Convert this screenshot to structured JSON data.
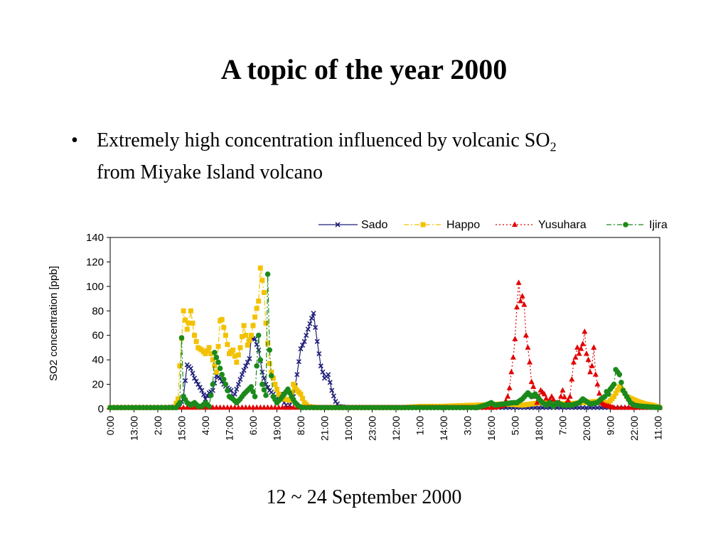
{
  "slide": {
    "title": "A topic of the year 2000",
    "bullet_symbol": "•",
    "bullet_text_pre": "Extremely high concentration influenced by volcanic SO",
    "bullet_subscript": "2",
    "bullet_text_line2": "from Miyake Island volcano",
    "caption": "12 ~ 24 September 2000"
  },
  "chart_data": {
    "type": "line",
    "title": "",
    "xlabel": "",
    "ylabel": "SO2 concentration [ppb]",
    "ylim": [
      0,
      140
    ],
    "yticks": [
      0,
      20,
      40,
      60,
      80,
      100,
      120,
      140
    ],
    "grid": false,
    "legend": "top-right",
    "x_tick_labels": [
      "0:00",
      "13:00",
      "2:00",
      "15:00",
      "4:00",
      "17:00",
      "6:00",
      "19:00",
      "8:00",
      "21:00",
      "10:00",
      "23:00",
      "12:00",
      "1:00",
      "14:00",
      "3:00",
      "16:00",
      "5:00",
      "18:00",
      "7:00",
      "20:00",
      "9:00",
      "22:00",
      "11:00"
    ],
    "x_tick_hours": [
      0,
      13,
      26,
      39,
      52,
      65,
      78,
      91,
      104,
      117,
      130,
      143,
      156,
      169,
      182,
      195,
      208,
      221,
      234,
      247,
      260,
      273,
      286,
      299
    ],
    "x_range_hours": [
      0,
      300
    ],
    "series": [
      {
        "name": "Sado",
        "color": "#1f1f7a",
        "marker": "x",
        "line": "solid",
        "points": [
          [
            0,
            1
          ],
          [
            30,
            1
          ],
          [
            38,
            2
          ],
          [
            40,
            10
          ],
          [
            42,
            36
          ],
          [
            44,
            33
          ],
          [
            46,
            25
          ],
          [
            48,
            20
          ],
          [
            50,
            15
          ],
          [
            52,
            8
          ],
          [
            54,
            13
          ],
          [
            56,
            15
          ],
          [
            58,
            27
          ],
          [
            60,
            25
          ],
          [
            62,
            20
          ],
          [
            64,
            17
          ],
          [
            66,
            15
          ],
          [
            67,
            10
          ],
          [
            68,
            12
          ],
          [
            70,
            20
          ],
          [
            72,
            28
          ],
          [
            74,
            35
          ],
          [
            76,
            41
          ],
          [
            77,
            58
          ],
          [
            79,
            57
          ],
          [
            81,
            48
          ],
          [
            83,
            30
          ],
          [
            85,
            20
          ],
          [
            87,
            15
          ],
          [
            89,
            12
          ],
          [
            91,
            8
          ],
          [
            93,
            12
          ],
          [
            95,
            5
          ],
          [
            97,
            1
          ],
          [
            98,
            3
          ],
          [
            100,
            10
          ],
          [
            102,
            28
          ],
          [
            104,
            49
          ],
          [
            106,
            55
          ],
          [
            108,
            65
          ],
          [
            110,
            74
          ],
          [
            111,
            78
          ],
          [
            113,
            55
          ],
          [
            115,
            35
          ],
          [
            117,
            25
          ],
          [
            119,
            28
          ],
          [
            121,
            15
          ],
          [
            123,
            6
          ],
          [
            125,
            2
          ],
          [
            130,
            1
          ],
          [
            300,
            1
          ]
        ]
      },
      {
        "name": "Happo",
        "color": "#f2c200",
        "marker": "square",
        "line": "dashdot",
        "points": [
          [
            0,
            1
          ],
          [
            35,
            1
          ],
          [
            37,
            8
          ],
          [
            38,
            35
          ],
          [
            40,
            80
          ],
          [
            42,
            65
          ],
          [
            43,
            70
          ],
          [
            44,
            80
          ],
          [
            45,
            70
          ],
          [
            46,
            60
          ],
          [
            48,
            50
          ],
          [
            50,
            48
          ],
          [
            52,
            45
          ],
          [
            54,
            50
          ],
          [
            56,
            40
          ],
          [
            58,
            30
          ],
          [
            60,
            72
          ],
          [
            61,
            73
          ],
          [
            63,
            60
          ],
          [
            65,
            45
          ],
          [
            67,
            48
          ],
          [
            69,
            38
          ],
          [
            71,
            50
          ],
          [
            73,
            68
          ],
          [
            75,
            52
          ],
          [
            77,
            60
          ],
          [
            78,
            68
          ],
          [
            80,
            82
          ],
          [
            81,
            88
          ],
          [
            82,
            115
          ],
          [
            84,
            95
          ],
          [
            85,
            70
          ],
          [
            87,
            37
          ],
          [
            88,
            30
          ],
          [
            90,
            20
          ],
          [
            92,
            12
          ],
          [
            95,
            8
          ],
          [
            98,
            7
          ],
          [
            100,
            20
          ],
          [
            102,
            15
          ],
          [
            104,
            12
          ],
          [
            106,
            5
          ],
          [
            108,
            2
          ],
          [
            112,
            1
          ],
          [
            160,
            1
          ],
          [
            170,
            2
          ],
          [
            180,
            2
          ],
          [
            200,
            3
          ],
          [
            215,
            4
          ],
          [
            225,
            3
          ],
          [
            235,
            5
          ],
          [
            250,
            4
          ],
          [
            265,
            6
          ],
          [
            272,
            5
          ],
          [
            275,
            10
          ],
          [
            278,
            18
          ],
          [
            280,
            15
          ],
          [
            282,
            10
          ],
          [
            285,
            8
          ],
          [
            288,
            6
          ],
          [
            292,
            4
          ],
          [
            296,
            3
          ],
          [
            300,
            1
          ]
        ]
      },
      {
        "name": "Yusuhara",
        "color": "#e10000",
        "marker": "triangle",
        "line": "dotted",
        "points": [
          [
            0,
            1
          ],
          [
            210,
            1
          ],
          [
            215,
            3
          ],
          [
            217,
            10
          ],
          [
            218,
            17
          ],
          [
            219,
            30
          ],
          [
            220,
            42
          ],
          [
            221,
            57
          ],
          [
            222,
            83
          ],
          [
            223,
            103
          ],
          [
            224,
            88
          ],
          [
            225,
            92
          ],
          [
            226,
            85
          ],
          [
            227,
            60
          ],
          [
            228,
            50
          ],
          [
            229,
            38
          ],
          [
            230,
            22
          ],
          [
            231,
            18
          ],
          [
            232,
            10
          ],
          [
            233,
            5
          ],
          [
            235,
            15
          ],
          [
            237,
            12
          ],
          [
            239,
            5
          ],
          [
            241,
            10
          ],
          [
            243,
            5
          ],
          [
            245,
            5
          ],
          [
            247,
            15
          ],
          [
            249,
            4
          ],
          [
            251,
            10
          ],
          [
            253,
            38
          ],
          [
            254,
            42
          ],
          [
            255,
            50
          ],
          [
            256,
            45
          ],
          [
            258,
            53
          ],
          [
            259,
            63
          ],
          [
            260,
            45
          ],
          [
            261,
            40
          ],
          [
            262,
            30
          ],
          [
            263,
            35
          ],
          [
            264,
            50
          ],
          [
            265,
            28
          ],
          [
            266,
            20
          ],
          [
            268,
            5
          ],
          [
            270,
            3
          ],
          [
            275,
            1
          ],
          [
            300,
            1
          ]
        ]
      },
      {
        "name": "Ijira",
        "color": "#1b8a1b",
        "marker": "circle",
        "line": "dashdot",
        "points": [
          [
            0,
            1
          ],
          [
            36,
            1
          ],
          [
            38,
            5
          ],
          [
            39,
            58
          ],
          [
            40,
            10
          ],
          [
            42,
            5
          ],
          [
            44,
            3
          ],
          [
            46,
            5
          ],
          [
            48,
            2
          ],
          [
            50,
            2
          ],
          [
            52,
            5
          ],
          [
            54,
            2
          ],
          [
            56,
            20
          ],
          [
            57,
            46
          ],
          [
            59,
            38
          ],
          [
            61,
            28
          ],
          [
            63,
            20
          ],
          [
            65,
            10
          ],
          [
            67,
            8
          ],
          [
            69,
            5
          ],
          [
            71,
            8
          ],
          [
            73,
            12
          ],
          [
            75,
            15
          ],
          [
            77,
            18
          ],
          [
            79,
            10
          ],
          [
            81,
            60
          ],
          [
            83,
            20
          ],
          [
            85,
            11
          ],
          [
            86,
            110
          ],
          [
            87,
            48
          ],
          [
            88,
            27
          ],
          [
            89,
            10
          ],
          [
            91,
            5
          ],
          [
            93,
            8
          ],
          [
            95,
            12
          ],
          [
            97,
            16
          ],
          [
            99,
            10
          ],
          [
            101,
            5
          ],
          [
            103,
            2
          ],
          [
            105,
            1
          ],
          [
            200,
            1
          ],
          [
            205,
            3
          ],
          [
            208,
            5
          ],
          [
            210,
            3
          ],
          [
            215,
            4
          ],
          [
            220,
            5
          ],
          [
            222,
            5
          ],
          [
            225,
            8
          ],
          [
            228,
            13
          ],
          [
            230,
            10
          ],
          [
            232,
            12
          ],
          [
            234,
            8
          ],
          [
            236,
            5
          ],
          [
            238,
            3
          ],
          [
            240,
            5
          ],
          [
            242,
            2
          ],
          [
            244,
            5
          ],
          [
            247,
            3
          ],
          [
            252,
            3
          ],
          [
            256,
            5
          ],
          [
            258,
            8
          ],
          [
            262,
            4
          ],
          [
            266,
            5
          ],
          [
            268,
            8
          ],
          [
            270,
            10
          ],
          [
            271,
            14
          ],
          [
            272,
            12
          ],
          [
            273,
            16
          ],
          [
            275,
            20
          ],
          [
            276,
            32
          ],
          [
            278,
            28
          ],
          [
            280,
            15
          ],
          [
            282,
            10
          ],
          [
            284,
            5
          ],
          [
            286,
            3
          ],
          [
            290,
            2
          ],
          [
            300,
            1
          ]
        ]
      }
    ]
  }
}
